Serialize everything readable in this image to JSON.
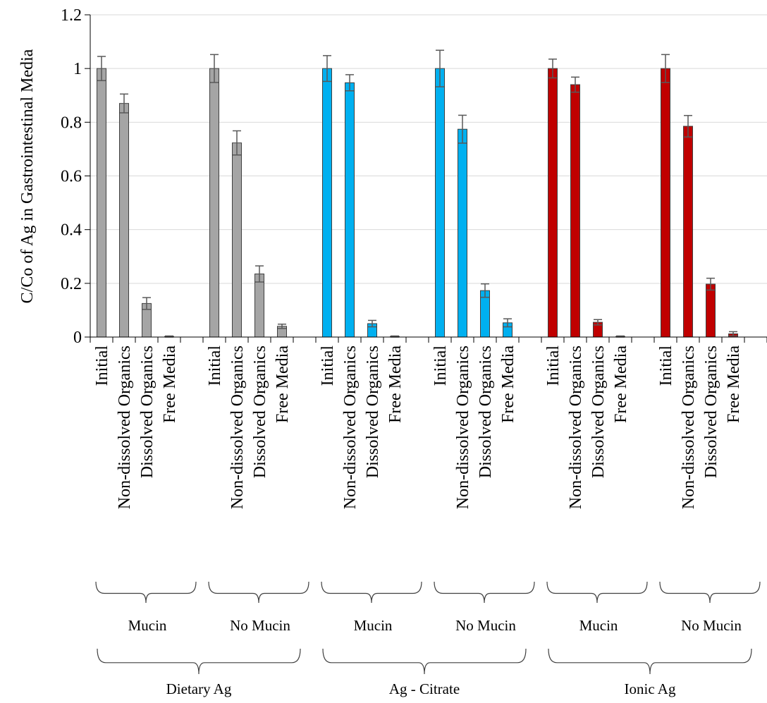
{
  "chart_data": {
    "type": "bar",
    "ylabel": "C/Co of Ag in Gastrointestinal Media",
    "xlabel": "",
    "ylim": [
      0,
      1.2
    ],
    "yticks": [
      "0",
      "0.2",
      "0.4",
      "0.6",
      "0.8",
      "1",
      "1.2"
    ],
    "grid": "horizontal",
    "categories": [
      "Initial",
      "Non-dissolved Organics",
      "Dissolved Organics",
      "Free Media"
    ],
    "subgroups": [
      "Mucin",
      "No Mucin"
    ],
    "groups": [
      {
        "name": "Dietary Ag",
        "color": "#a5a5a5",
        "subsets": [
          {
            "name": "Mucin",
            "values": [
              1.0,
              0.87,
              0.125,
              0.002
            ],
            "errors": [
              0.045,
              0.035,
              0.022,
              0.002
            ]
          },
          {
            "name": "No Mucin",
            "values": [
              1.0,
              0.723,
              0.235,
              0.04
            ],
            "errors": [
              0.052,
              0.045,
              0.03,
              0.008
            ]
          }
        ]
      },
      {
        "name": "Ag - Citrate",
        "color": "#00b0f0",
        "subsets": [
          {
            "name": "Mucin",
            "values": [
              1.0,
              0.947,
              0.05,
              0.002
            ],
            "errors": [
              0.048,
              0.03,
              0.012,
              0.002
            ]
          },
          {
            "name": "No Mucin",
            "values": [
              1.0,
              0.774,
              0.173,
              0.053
            ],
            "errors": [
              0.068,
              0.052,
              0.025,
              0.015
            ]
          }
        ]
      },
      {
        "name": "Ionic Ag",
        "color": "#c00000",
        "subsets": [
          {
            "name": "Mucin",
            "values": [
              1.0,
              0.94,
              0.055,
              0.002
            ],
            "errors": [
              0.035,
              0.028,
              0.01,
              0.002
            ]
          },
          {
            "name": "No Mucin",
            "values": [
              1.0,
              0.785,
              0.197,
              0.012
            ],
            "errors": [
              0.052,
              0.04,
              0.022,
              0.008
            ]
          }
        ]
      }
    ]
  }
}
